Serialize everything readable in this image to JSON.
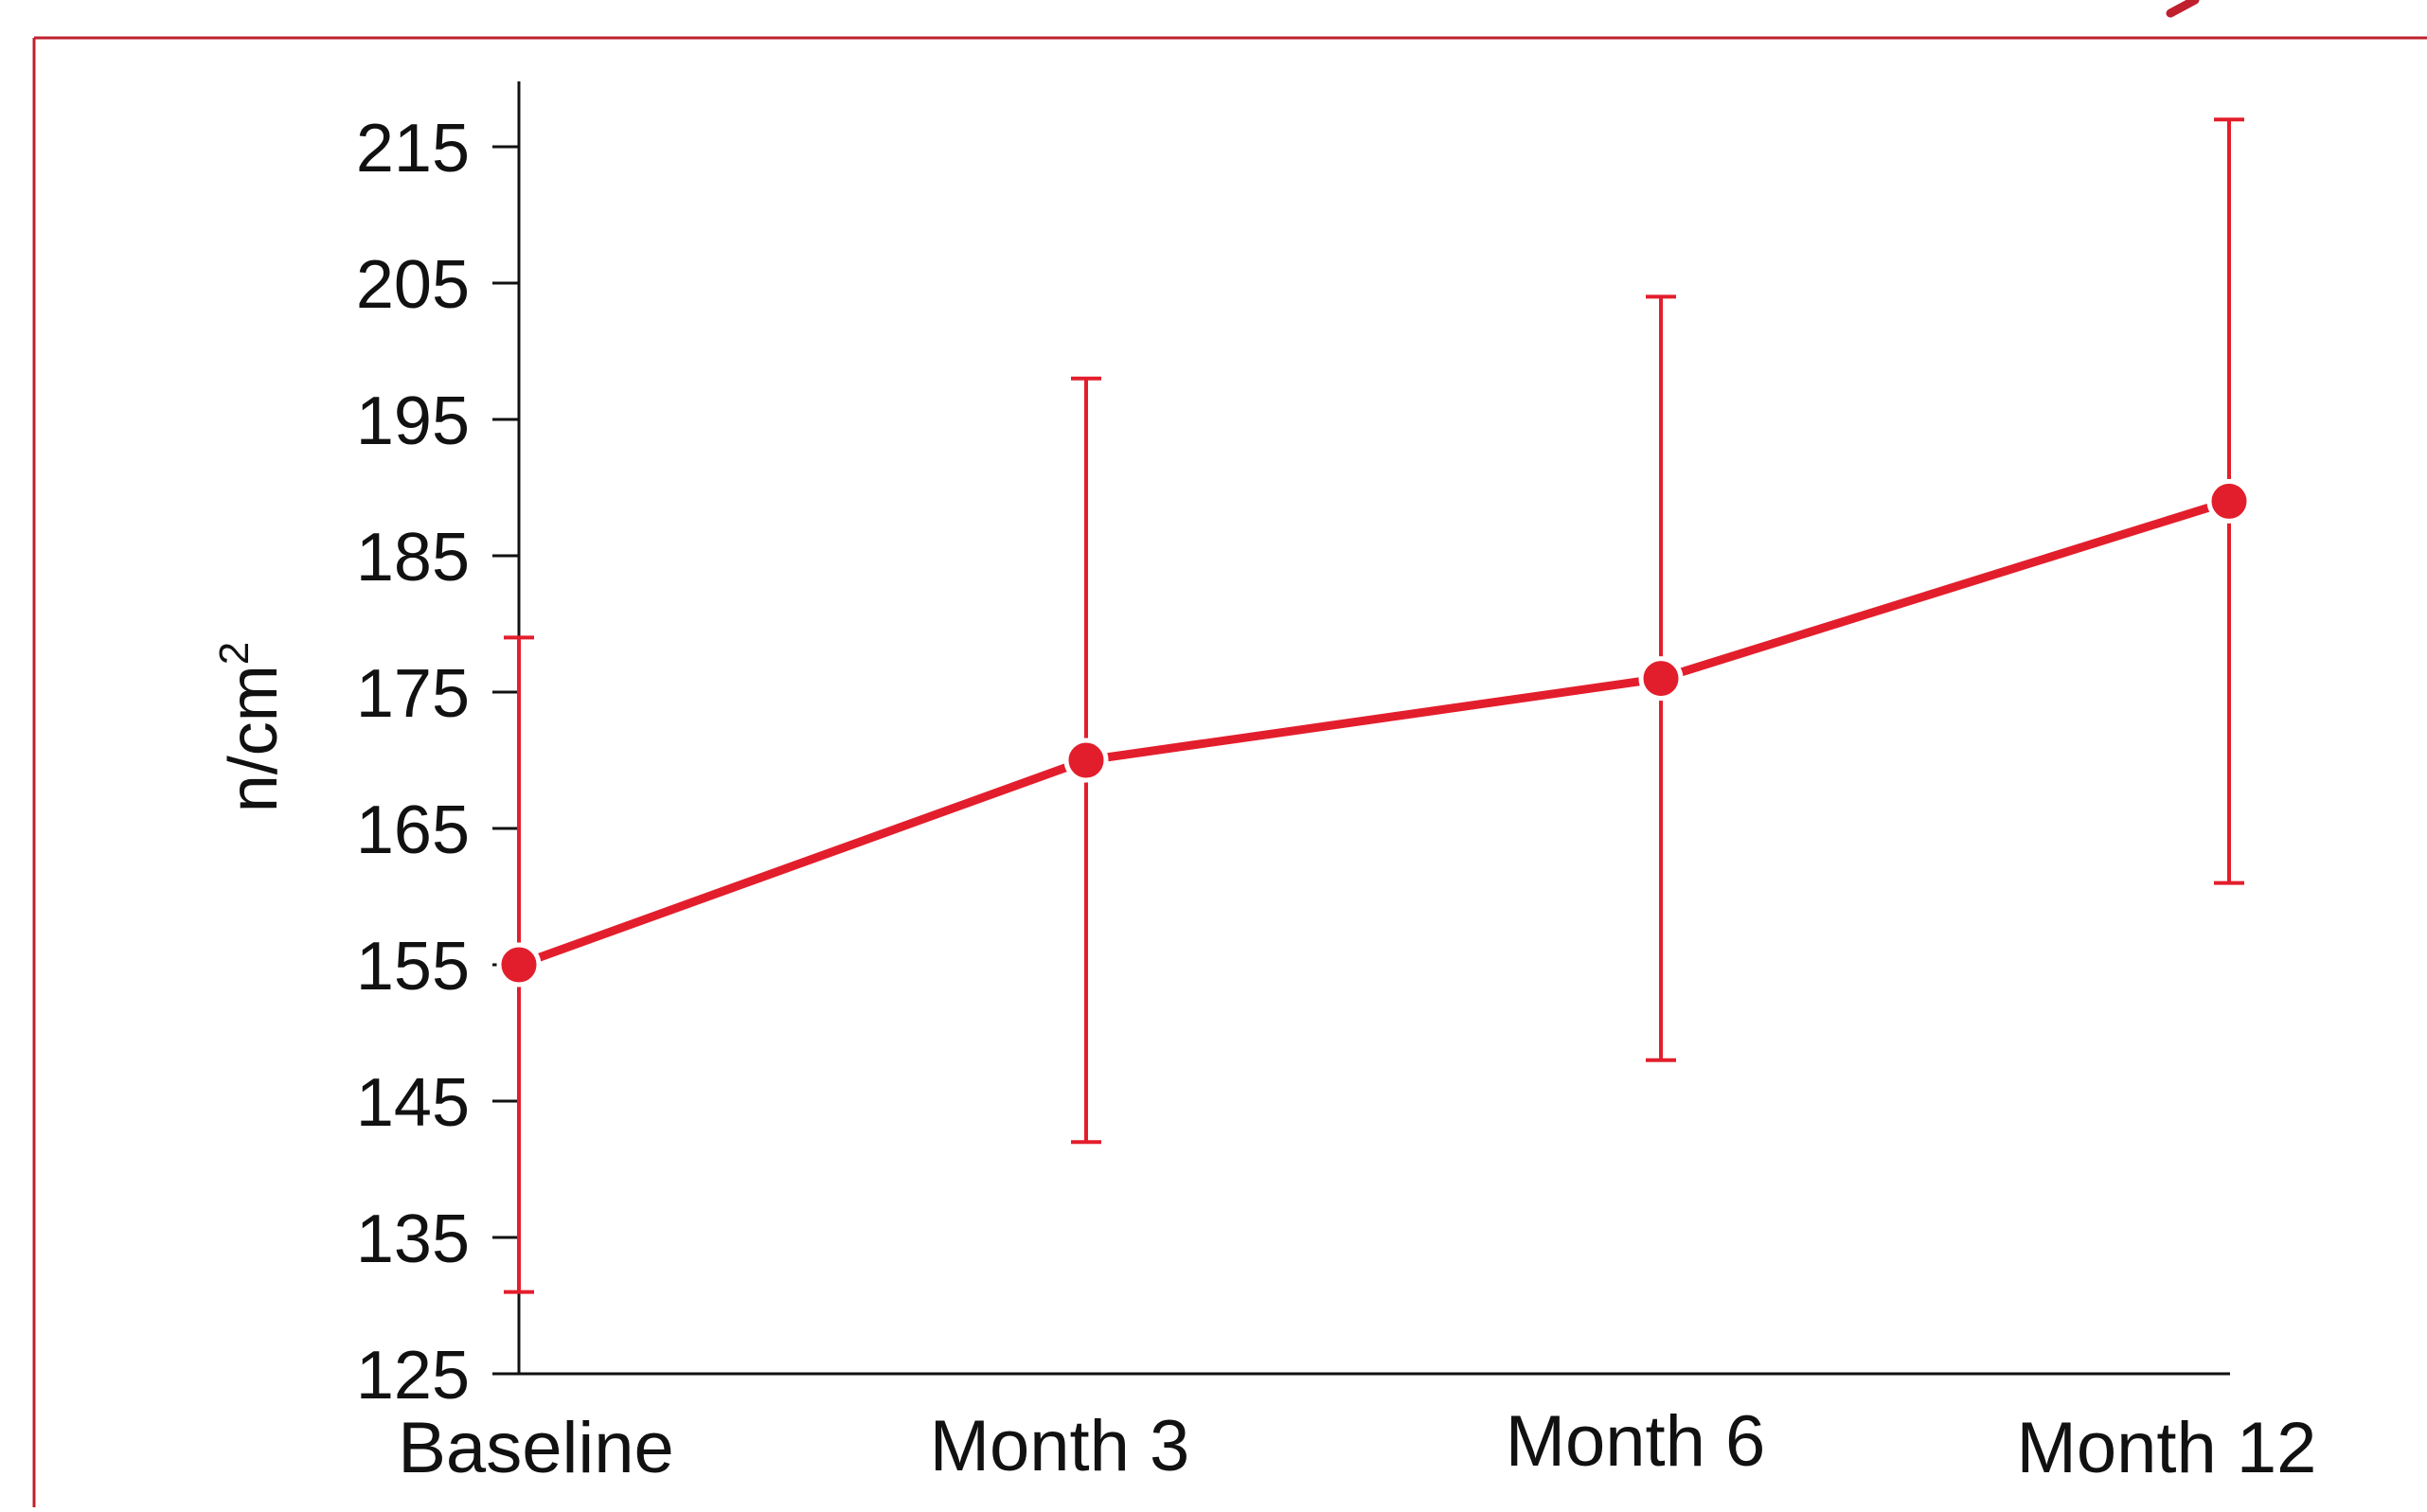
{
  "chart_data": {
    "type": "line",
    "title": "",
    "xlabel": "",
    "ylabel": "n/cm",
    "ylabel_superscript": "2",
    "categories": [
      "Baseline",
      "Month 3",
      "Month 6",
      "Month 12"
    ],
    "series": [
      {
        "values": [
          155,
          170,
          176,
          189
        ],
        "error_low": [
          131,
          142,
          148,
          161
        ],
        "error_high": [
          179,
          198,
          204,
          217
        ]
      }
    ],
    "yticks": [
      125,
      135,
      145,
      155,
      165,
      175,
      185,
      195,
      205,
      215
    ],
    "ytick_labels": [
      "125",
      "135",
      "145",
      "155",
      "165",
      "175",
      "185",
      "195",
      "205",
      "215"
    ],
    "ylim": [
      125,
      219
    ],
    "grid": false,
    "legend": "none",
    "colors": {
      "series": "#e31e2c",
      "frame": "#c0202e",
      "axis": "#111111",
      "marker_outline": "#ffffff"
    }
  }
}
